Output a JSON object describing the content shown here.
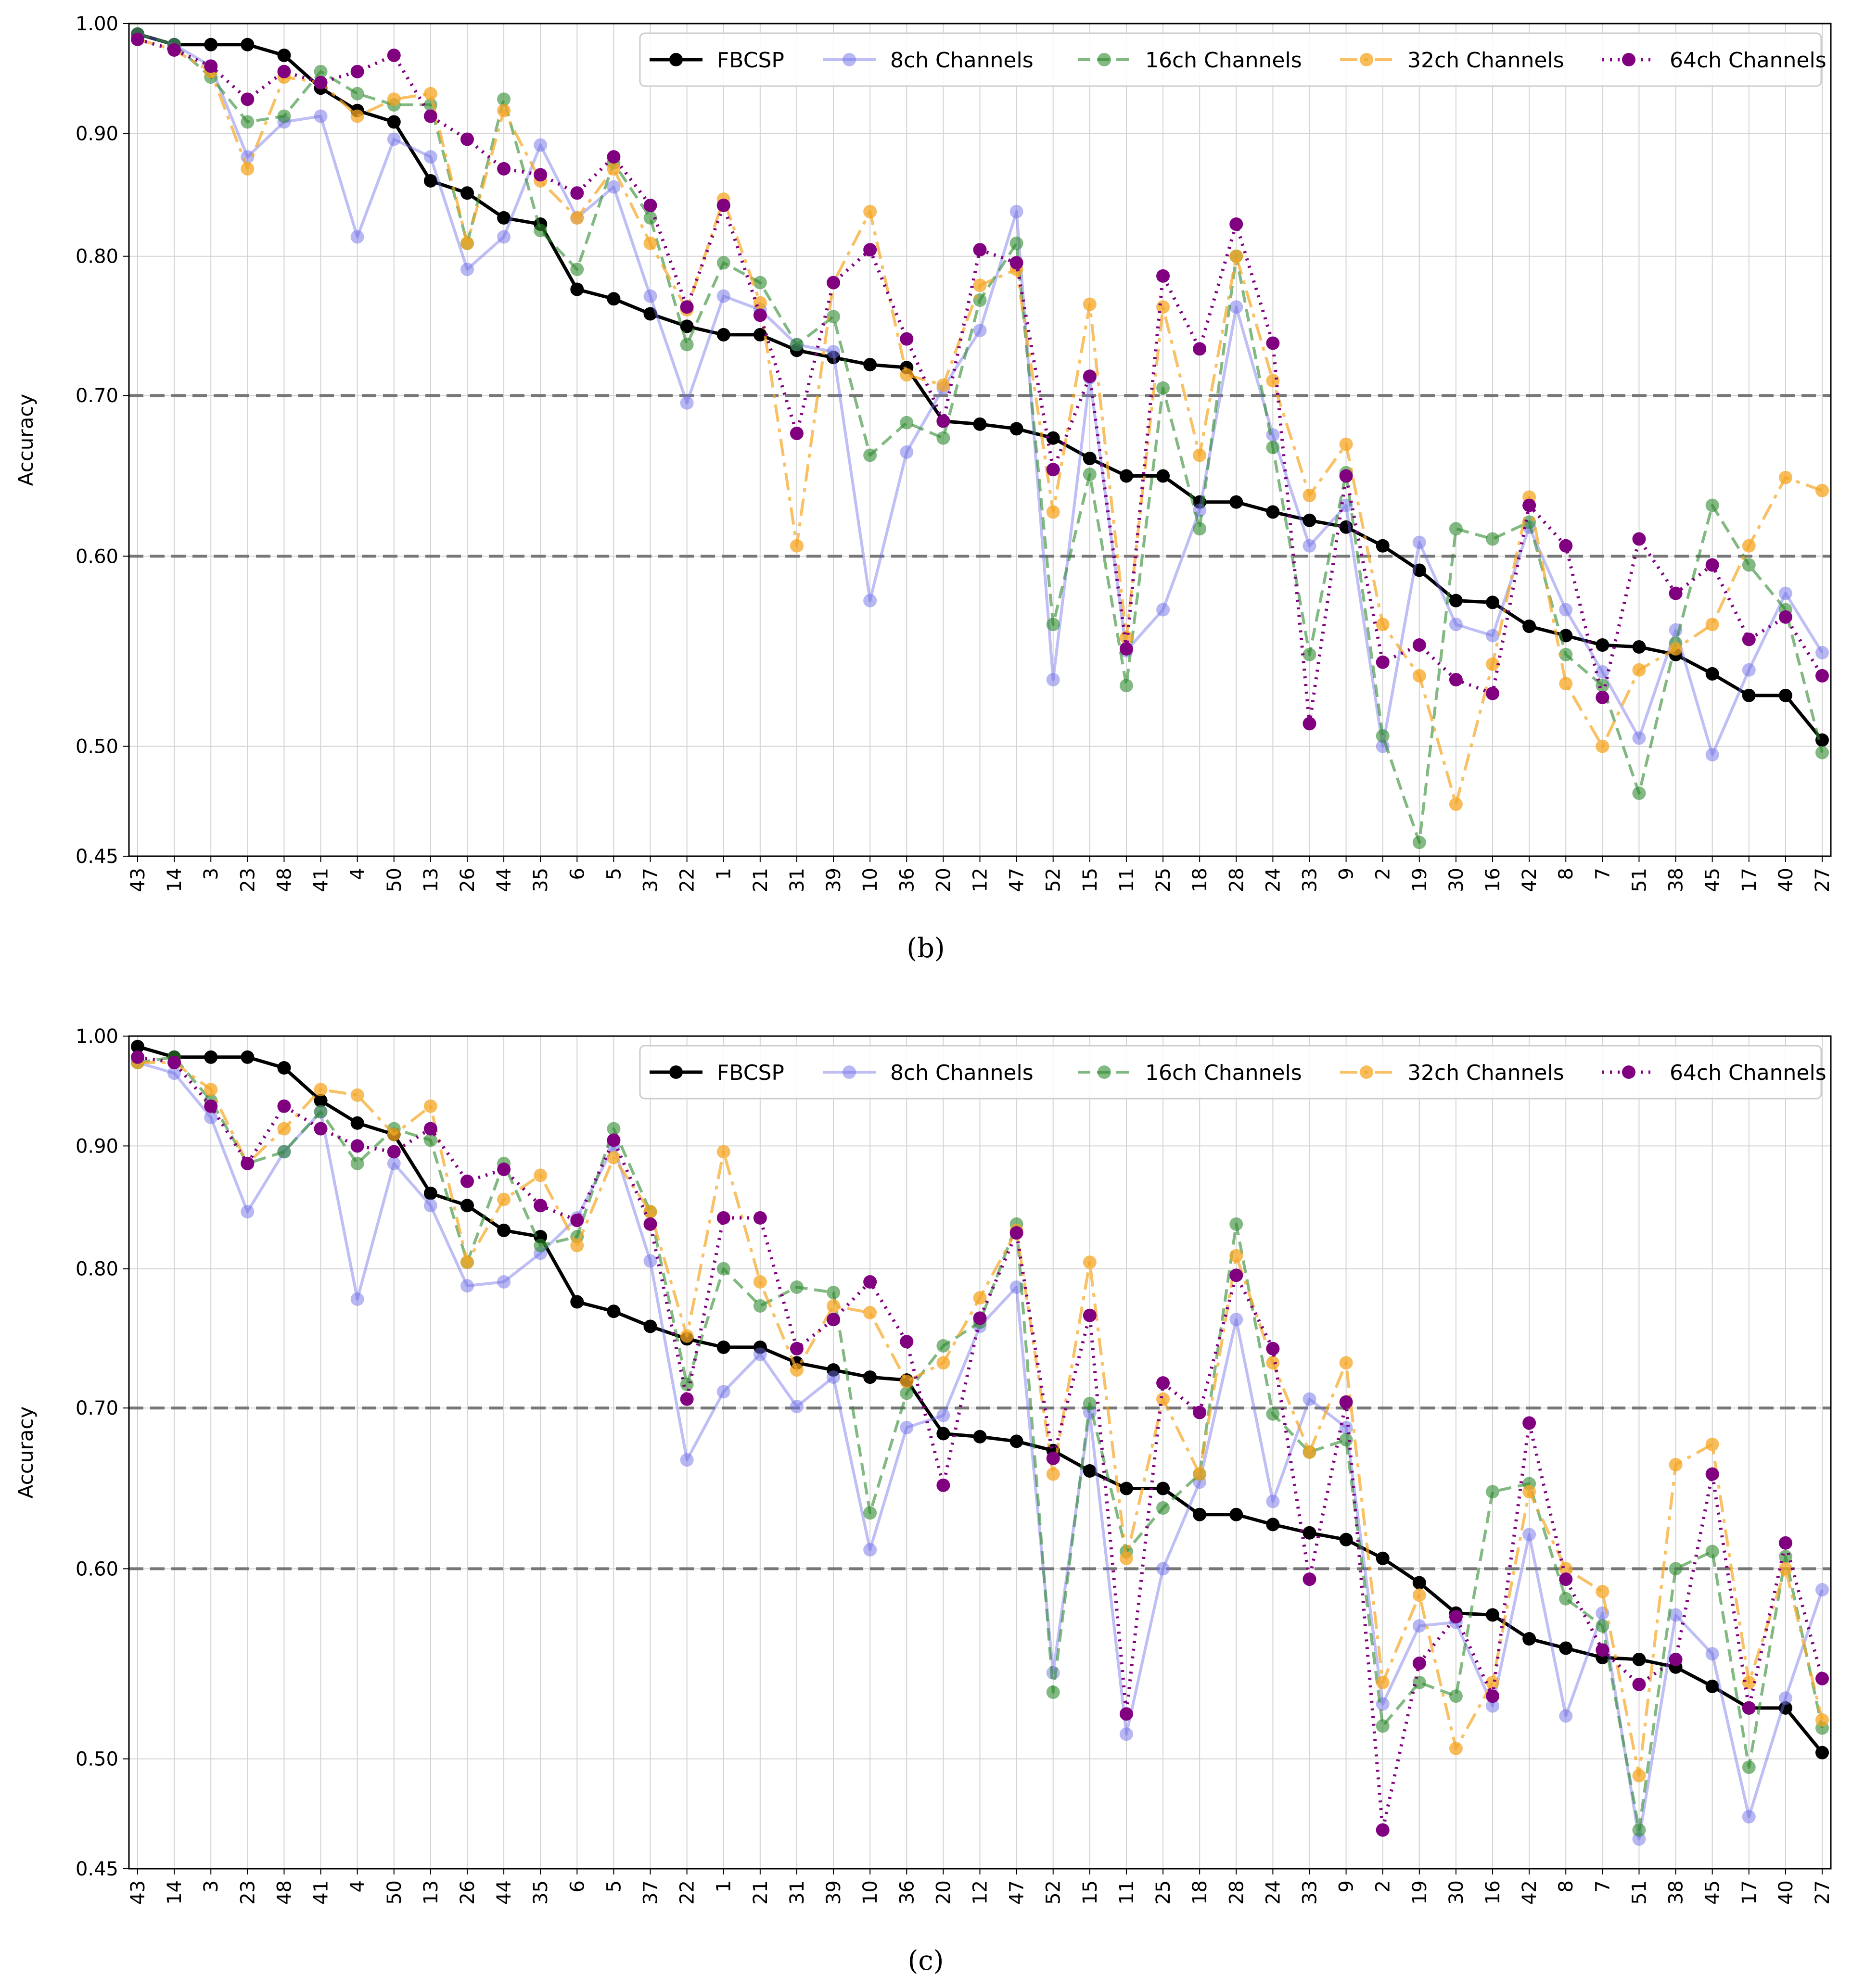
{
  "chart_data": [
    {
      "type": "line",
      "panel_label": "(b)",
      "ylabel": "Accuracy",
      "ylim": [
        0.45,
        1.0
      ],
      "yticks": [
        "0.45",
        "0.50",
        "0.60",
        "0.70",
        "0.80",
        "0.90",
        "1.00"
      ],
      "yscale": "log",
      "reference_lines": [
        0.6,
        0.7
      ],
      "legend": "top-right",
      "grid": true,
      "categories": [
        "43",
        "14",
        "3",
        "23",
        "48",
        "41",
        "4",
        "50",
        "13",
        "26",
        "44",
        "35",
        "6",
        "5",
        "37",
        "22",
        "1",
        "21",
        "31",
        "39",
        "10",
        "36",
        "20",
        "12",
        "47",
        "52",
        "15",
        "11",
        "25",
        "18",
        "28",
        "24",
        "33",
        "9",
        "2",
        "19",
        "30",
        "16",
        "42",
        "8",
        "7",
        "51",
        "38",
        "45",
        "17",
        "40",
        "27"
      ],
      "series": [
        {
          "name": "FBCSP",
          "color": "#000000",
          "values": [
            0.99,
            0.98,
            0.98,
            0.98,
            0.97,
            0.94,
            0.92,
            0.91,
            0.86,
            0.85,
            0.83,
            0.825,
            0.775,
            0.768,
            0.757,
            0.748,
            0.742,
            0.742,
            0.731,
            0.726,
            0.721,
            0.719,
            0.683,
            0.681,
            0.678,
            0.672,
            0.659,
            0.648,
            0.648,
            0.632,
            0.632,
            0.626,
            0.621,
            0.617,
            0.606,
            0.592,
            0.575,
            0.574,
            0.561,
            0.556,
            0.551,
            0.55,
            0.546,
            0.536,
            0.525,
            0.525,
            0.503
          ]
        },
        {
          "name": "8ch Channels",
          "color": "#7070e8",
          "values": [
            0.99,
            0.98,
            0.96,
            0.88,
            0.91,
            0.915,
            0.815,
            0.895,
            0.88,
            0.79,
            0.815,
            0.89,
            0.83,
            0.855,
            0.77,
            0.695,
            0.77,
            0.76,
            0.735,
            0.73,
            0.575,
            0.663,
            0.705,
            0.745,
            0.835,
            0.533,
            0.712,
            0.548,
            0.57,
            0.627,
            0.762,
            0.674,
            0.606,
            0.63,
            0.5,
            0.608,
            0.562,
            0.556,
            0.617,
            0.57,
            0.537,
            0.504,
            0.559,
            0.496,
            0.538,
            0.579,
            0.547
          ]
        },
        {
          "name": "16ch Channels",
          "color": "#2e8b2e",
          "values": [
            0.99,
            0.98,
            0.95,
            0.91,
            0.915,
            0.955,
            0.935,
            0.925,
            0.925,
            0.81,
            0.93,
            0.82,
            0.79,
            0.875,
            0.83,
            0.735,
            0.795,
            0.78,
            0.735,
            0.755,
            0.661,
            0.682,
            0.672,
            0.767,
            0.81,
            0.562,
            0.649,
            0.53,
            0.705,
            0.616,
            0.8,
            0.666,
            0.546,
            0.65,
            0.505,
            0.456,
            0.616,
            0.61,
            0.62,
            0.546,
            0.53,
            0.478,
            0.552,
            0.63,
            0.595,
            0.57,
            0.497
          ]
        },
        {
          "name": "32ch Channels",
          "color": "#f5a623",
          "values": [
            0.985,
            0.975,
            0.955,
            0.87,
            0.95,
            0.945,
            0.915,
            0.93,
            0.935,
            0.81,
            0.92,
            0.86,
            0.83,
            0.87,
            0.81,
            0.76,
            0.845,
            0.765,
            0.606,
            0.78,
            0.835,
            0.714,
            0.707,
            0.778,
            0.79,
            0.626,
            0.764,
            0.555,
            0.762,
            0.661,
            0.8,
            0.71,
            0.636,
            0.668,
            0.562,
            0.535,
            0.473,
            0.541,
            0.635,
            0.531,
            0.5,
            0.538,
            0.549,
            0.562,
            0.606,
            0.647,
            0.639
          ]
        },
        {
          "name": "64ch Channels",
          "color": "#800080",
          "values": [
            0.985,
            0.975,
            0.96,
            0.93,
            0.955,
            0.945,
            0.955,
            0.97,
            0.915,
            0.895,
            0.87,
            0.865,
            0.85,
            0.88,
            0.84,
            0.762,
            0.84,
            0.756,
            0.675,
            0.78,
            0.805,
            0.739,
            0.683,
            0.805,
            0.795,
            0.652,
            0.713,
            0.549,
            0.785,
            0.732,
            0.825,
            0.736,
            0.511,
            0.648,
            0.542,
            0.551,
            0.533,
            0.526,
            0.63,
            0.606,
            0.524,
            0.61,
            0.579,
            0.595,
            0.554,
            0.566,
            0.535
          ]
        }
      ]
    },
    {
      "type": "line",
      "panel_label": "(c)",
      "ylabel": "Accuracy",
      "ylim": [
        0.45,
        1.0
      ],
      "yticks": [
        "0.45",
        "0.50",
        "0.60",
        "0.70",
        "0.80",
        "0.90",
        "1.00"
      ],
      "yscale": "log",
      "reference_lines": [
        0.6,
        0.7
      ],
      "legend": "top-right",
      "grid": true,
      "categories": [
        "43",
        "14",
        "3",
        "23",
        "48",
        "41",
        "4",
        "50",
        "13",
        "26",
        "44",
        "35",
        "6",
        "5",
        "37",
        "22",
        "1",
        "21",
        "31",
        "39",
        "10",
        "36",
        "20",
        "12",
        "47",
        "52",
        "15",
        "11",
        "25",
        "18",
        "28",
        "24",
        "33",
        "9",
        "2",
        "19",
        "30",
        "16",
        "42",
        "8",
        "7",
        "51",
        "38",
        "45",
        "17",
        "40",
        "27"
      ],
      "series": [
        {
          "name": "FBCSP",
          "color": "#000000",
          "values": [
            0.99,
            0.98,
            0.98,
            0.98,
            0.97,
            0.94,
            0.92,
            0.91,
            0.86,
            0.85,
            0.83,
            0.825,
            0.775,
            0.768,
            0.757,
            0.748,
            0.742,
            0.742,
            0.731,
            0.726,
            0.721,
            0.719,
            0.683,
            0.681,
            0.678,
            0.672,
            0.659,
            0.648,
            0.648,
            0.632,
            0.632,
            0.626,
            0.621,
            0.617,
            0.606,
            0.592,
            0.575,
            0.574,
            0.561,
            0.556,
            0.551,
            0.55,
            0.546,
            0.536,
            0.525,
            0.525,
            0.503
          ]
        },
        {
          "name": "8ch Channels",
          "color": "#7070e8",
          "values": [
            0.975,
            0.965,
            0.925,
            0.845,
            0.895,
            0.93,
            0.777,
            0.885,
            0.85,
            0.787,
            0.79,
            0.812,
            0.84,
            0.9,
            0.806,
            0.666,
            0.711,
            0.737,
            0.701,
            0.721,
            0.611,
            0.687,
            0.695,
            0.757,
            0.786,
            0.543,
            0.697,
            0.512,
            0.6,
            0.652,
            0.762,
            0.64,
            0.706,
            0.687,
            0.527,
            0.568,
            0.57,
            0.526,
            0.62,
            0.521,
            0.575,
            0.463,
            0.574,
            0.553,
            0.473,
            0.53,
            0.588
          ]
        },
        {
          "name": "16ch Channels",
          "color": "#2e8b2e",
          "values": [
            0.975,
            0.98,
            0.94,
            0.885,
            0.895,
            0.93,
            0.885,
            0.915,
            0.905,
            0.805,
            0.885,
            0.818,
            0.825,
            0.915,
            0.845,
            0.716,
            0.8,
            0.772,
            0.786,
            0.782,
            0.633,
            0.71,
            0.743,
            0.76,
            0.835,
            0.533,
            0.703,
            0.61,
            0.636,
            0.657,
            0.835,
            0.696,
            0.671,
            0.679,
            0.516,
            0.538,
            0.531,
            0.646,
            0.651,
            0.583,
            0.568,
            0.467,
            0.6,
            0.61,
            0.496,
            0.607,
            0.515
          ]
        },
        {
          "name": "32ch Channels",
          "color": "#f5a623",
          "values": [
            0.975,
            0.975,
            0.95,
            0.885,
            0.915,
            0.95,
            0.945,
            0.91,
            0.935,
            0.805,
            0.855,
            0.875,
            0.818,
            0.89,
            0.845,
            0.75,
            0.895,
            0.79,
            0.726,
            0.772,
            0.767,
            0.718,
            0.731,
            0.778,
            0.83,
            0.657,
            0.805,
            0.606,
            0.706,
            0.657,
            0.81,
            0.731,
            0.671,
            0.731,
            0.538,
            0.585,
            0.505,
            0.538,
            0.646,
            0.6,
            0.587,
            0.492,
            0.663,
            0.676,
            0.538,
            0.6,
            0.519
          ]
        },
        {
          "name": "64ch Channels",
          "color": "#800080",
          "values": [
            0.98,
            0.975,
            0.935,
            0.885,
            0.935,
            0.915,
            0.9,
            0.895,
            0.915,
            0.87,
            0.88,
            0.85,
            0.838,
            0.905,
            0.835,
            0.706,
            0.84,
            0.84,
            0.741,
            0.762,
            0.79,
            0.746,
            0.65,
            0.763,
            0.828,
            0.667,
            0.765,
            0.522,
            0.717,
            0.697,
            0.795,
            0.741,
            0.594,
            0.704,
            0.467,
            0.548,
            0.573,
            0.531,
            0.69,
            0.594,
            0.555,
            0.537,
            0.55,
            0.657,
            0.525,
            0.615,
            0.54
          ]
        }
      ]
    }
  ]
}
